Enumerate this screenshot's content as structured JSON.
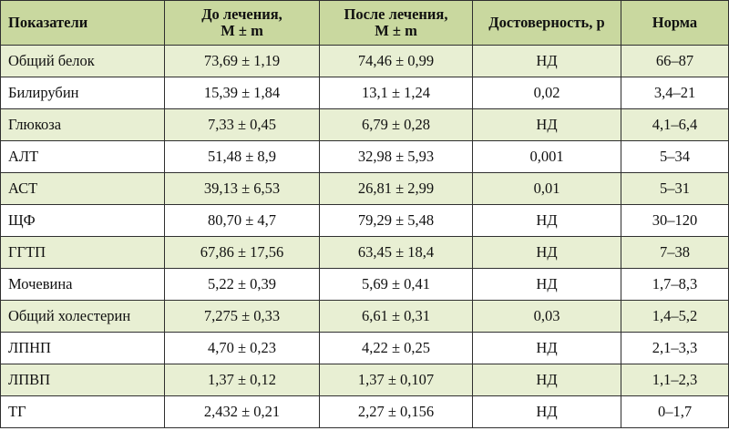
{
  "table": {
    "headers": [
      "Показатели",
      "До лечения,\nM ± m",
      "После лечения,\nM ± m",
      "Достоверность, р",
      "Норма"
    ],
    "rows": [
      [
        "Общий белок",
        "73,69 ± 1,19",
        "74,46 ± 0,99",
        "НД",
        "66–87"
      ],
      [
        "Билирубин",
        "15,39 ± 1,84",
        "13,1 ± 1,24",
        "0,02",
        "3,4–21"
      ],
      [
        "Глюкоза",
        "7,33 ± 0,45",
        "6,79 ± 0,28",
        "НД",
        "4,1–6,4"
      ],
      [
        "АЛТ",
        "51,48 ± 8,9",
        "32,98 ± 5,93",
        "0,001",
        "5–34"
      ],
      [
        "АСТ",
        "39,13 ± 6,53",
        "26,81 ± 2,99",
        "0,01",
        "5–31"
      ],
      [
        "ЩФ",
        "80,70 ± 4,7",
        "79,29 ± 5,48",
        "НД",
        "30–120"
      ],
      [
        "ГГТП",
        "67,86 ± 17,56",
        "63,45 ± 18,4",
        "НД",
        "7–38"
      ],
      [
        "Мочевина",
        "5,22 ± 0,39",
        "5,69 ± 0,41",
        "НД",
        "1,7–8,3"
      ],
      [
        "Общий холестерин",
        "7,275 ± 0,33",
        "6,61 ± 0,31",
        "0,03",
        "1,4–5,2"
      ],
      [
        "ЛПНП",
        "4,70 ± 0,23",
        "4,22 ± 0,25",
        "НД",
        "2,1–3,3"
      ],
      [
        "ЛПВП",
        "1,37 ± 0,12",
        "1,37 ± 0,107",
        "НД",
        "1,1–2,3"
      ],
      [
        "ТГ",
        "2,432 ± 0,21",
        "2,27 ± 0,156",
        "НД",
        "0–1,7"
      ]
    ]
  },
  "colors": {
    "header_bg": "#c9d89f",
    "shaded_row_bg": "#e8efd3",
    "plain_row_bg": "#ffffff",
    "border": "#2f2f2f"
  }
}
